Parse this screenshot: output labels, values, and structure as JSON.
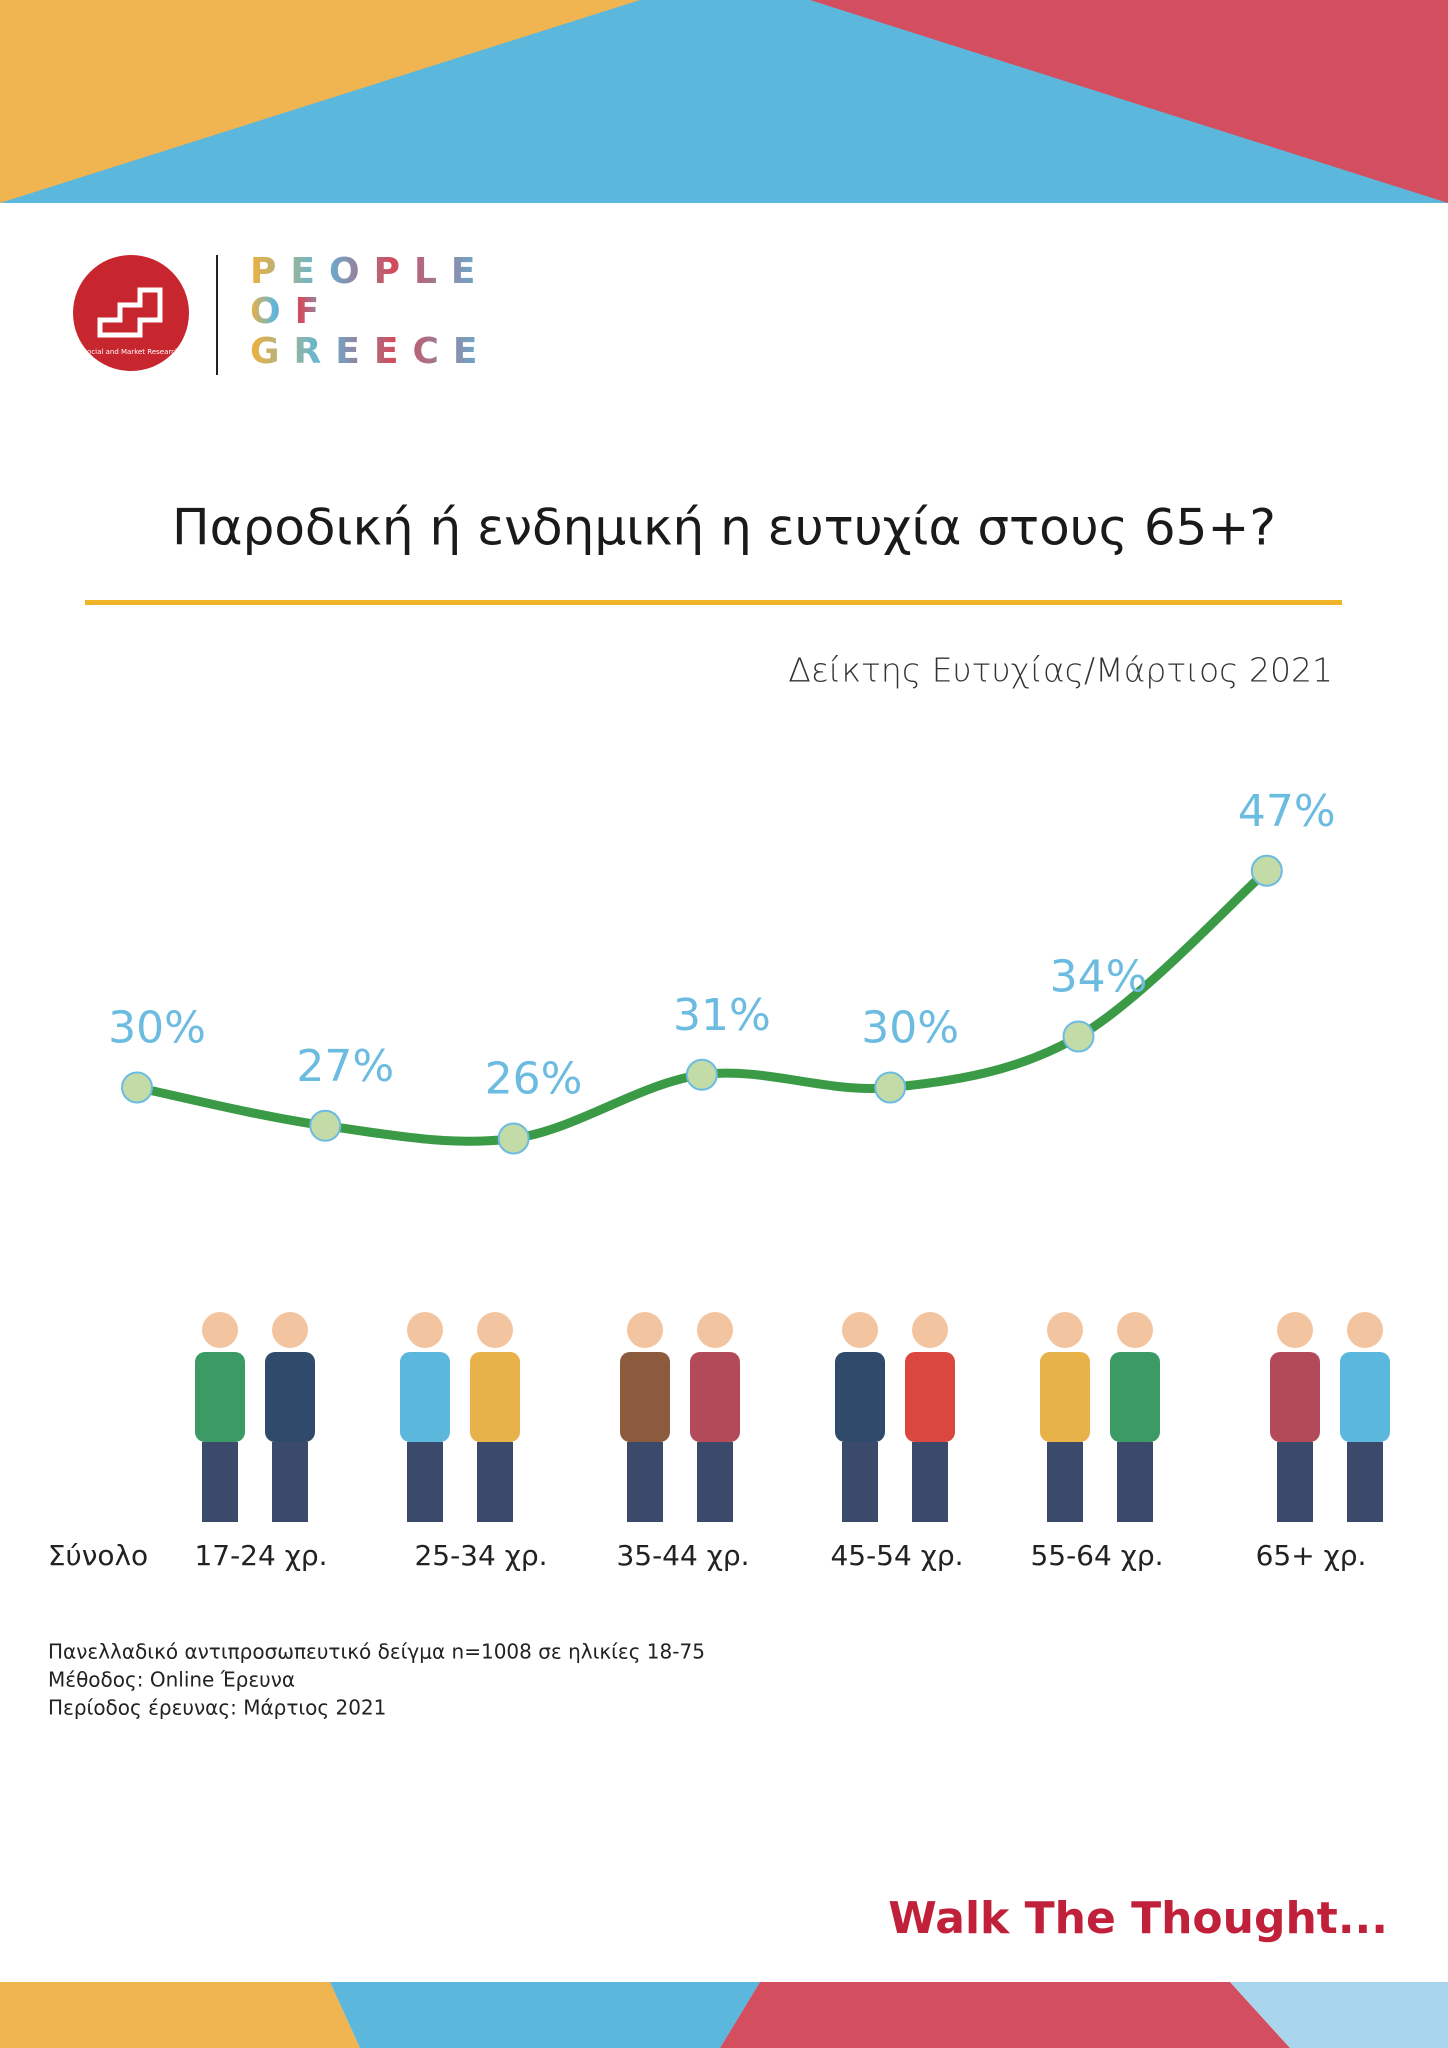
{
  "header": {
    "brand": [
      "PEOPLE",
      "OF",
      "GREECE"
    ],
    "logo_text": "Social and Market Research"
  },
  "chart_data": {
    "type": "line",
    "title": "Παροδική ή ενδημική η ευτυχία στους 65+?",
    "subtitle": "Δείκτης Ευτυχίας/Μάρτιος 2021",
    "categories": [
      "Σύνολο",
      "17-24 χρ.",
      "25-34 χρ.",
      "35-44 χρ.",
      "45-54 χρ.",
      "55-64 χρ.",
      "65+ χρ."
    ],
    "values": [
      30,
      27,
      26,
      31,
      30,
      34,
      47
    ],
    "value_labels": [
      "30%",
      "27%",
      "26%",
      "31%",
      "30%",
      "34%",
      "47%"
    ],
    "color": "#3a9a45",
    "marker_color": "#c3dba6",
    "label_color": "#6cbbe0"
  },
  "notes": [
    "Πανελλαδικό αντιπροσωπευτικό δείγμα n=1008 σε ηλικίες 18-75",
    "Μέθοδος: Online Έρευνα",
    "Περίοδος έρευνας: Μάρτιος 2021"
  ],
  "footer": {
    "slogan": "Walk The Thought..."
  }
}
